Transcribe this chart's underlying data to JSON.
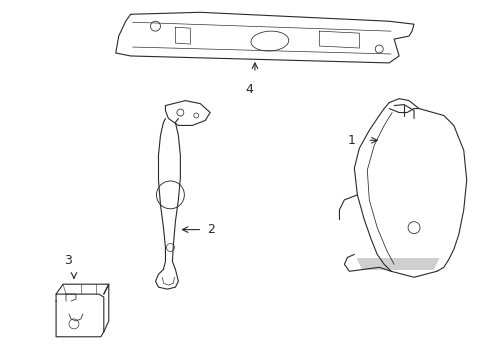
{
  "background_color": "#ffffff",
  "line_color": "#2a2a2a",
  "fig_width": 4.89,
  "fig_height": 3.6,
  "dpi": 100,
  "font_size": 9
}
